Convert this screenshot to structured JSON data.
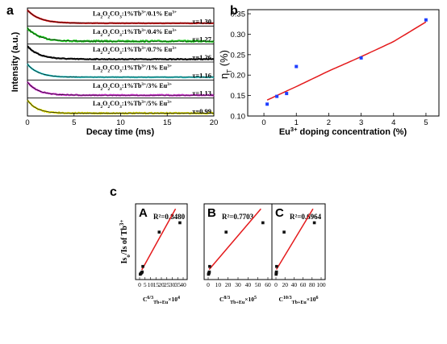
{
  "panel_letters": {
    "a": "a",
    "b": "b",
    "c": "c"
  },
  "chart_data": [
    {
      "panel": "a",
      "type": "line",
      "xlabel": "Decay time (ms)",
      "ylabel": "Intensity (a.u.)",
      "xlim": [
        0,
        20
      ],
      "xticks": [
        "0",
        "5",
        "10",
        "15",
        "20"
      ],
      "series": [
        {
          "name": "La2O2CO3:1%Tb3+/0.1% Eu3+",
          "label_main": "La",
          "tau": "τ=1.30",
          "tau_value": 1.3,
          "color": "#e41a1c",
          "noise": 0.05
        },
        {
          "name": "La2O2CO3:1%Tb3+/0.4% Eu3+",
          "tau": "τ=1.27",
          "tau_value": 1.27,
          "color": "#22d322",
          "noise": 0.22
        },
        {
          "name": "La2O2CO3:1%Tb3+/0.7% Eu3+",
          "tau": "τ=1.26",
          "tau_value": 1.26,
          "color": "#111111",
          "noise": 0.12
        },
        {
          "name": "La2O2CO3:1%Tb3+/1% Eu3+",
          "tau": "τ=1.16",
          "tau_value": 1.16,
          "color": "#33d6d6",
          "noise": 0.08
        },
        {
          "name": "La2O2CO3:1%Tb3+/3% Eu3+",
          "tau": "τ=1.13",
          "tau_value": 1.13,
          "color": "#d633d6",
          "noise": 0.15
        },
        {
          "name": "La2O2CO3:1%Tb3+/5% Eu3+",
          "tau": "τ=0.99",
          "tau_value": 0.99,
          "color": "#dede10",
          "noise": 0.18
        }
      ]
    },
    {
      "panel": "b",
      "type": "scatter",
      "xlabel": "Eu3+ doping concentration (%)",
      "ylabel": "ηT (%)",
      "xlim": [
        -0.5,
        5.4
      ],
      "ylim": [
        0.1,
        0.36
      ],
      "xticks": [
        0,
        1,
        2,
        3,
        4,
        5
      ],
      "yticks": [
        "0.10",
        "0.15",
        "0.20",
        "0.25",
        "0.30",
        "0.35"
      ],
      "points": [
        {
          "x": 0.1,
          "y": 0.129
        },
        {
          "x": 0.4,
          "y": 0.148
        },
        {
          "x": 0.7,
          "y": 0.155
        },
        {
          "x": 1.0,
          "y": 0.221
        },
        {
          "x": 3.0,
          "y": 0.242
        },
        {
          "x": 5.0,
          "y": 0.335
        }
      ],
      "fit": {
        "x": [
          0.1,
          1,
          2,
          3,
          4,
          5
        ],
        "y": [
          0.139,
          0.172,
          0.21,
          0.245,
          0.282,
          0.33
        ]
      },
      "marker_color": "#1f3fff",
      "fit_color": "#e41a1c"
    },
    {
      "panel": "c",
      "type": "scatter",
      "ylabel": "Iso/Is of Tb3+",
      "subplots": [
        {
          "letter": "A",
          "r2": "R²=0.8480",
          "xlabel_sup": "6/3",
          "xlabel_exp": "4",
          "xlim": [
            0,
            40
          ],
          "xticks": [
            "0",
            "5",
            "10",
            "15",
            "20",
            "25",
            "30",
            "35",
            "40"
          ],
          "points": [
            {
              "x": 0.6,
              "y": 2.1
            },
            {
              "x": 1.2,
              "y": 2.4
            },
            {
              "x": 1.8,
              "y": 2.7
            },
            {
              "x": 2.4,
              "y": 3.0
            },
            {
              "x": 3.0,
              "y": 5.2
            },
            {
              "x": 18.0,
              "y": 18.8
            },
            {
              "x": 37.0,
              "y": 22.5
            }
          ],
          "fit": {
            "x": [
              2.0,
              33.0
            ],
            "y": [
              3.8,
              28.0
            ]
          }
        },
        {
          "letter": "B",
          "r2": "R²=0.7703",
          "xlabel_sup": "8/3",
          "xlabel_exp": "5",
          "xlim": [
            0,
            60
          ],
          "xticks": [
            "0",
            "10",
            "20",
            "30",
            "40",
            "50",
            "60"
          ],
          "points": [
            {
              "x": 0.3,
              "y": 2.1
            },
            {
              "x": 0.6,
              "y": 2.4
            },
            {
              "x": 0.9,
              "y": 2.7
            },
            {
              "x": 1.2,
              "y": 3.0
            },
            {
              "x": 1.5,
              "y": 5.2
            },
            {
              "x": 18.0,
              "y": 18.8
            },
            {
              "x": 55.0,
              "y": 22.5
            }
          ],
          "fit": {
            "x": [
              1.0,
              53.0
            ],
            "y": [
              4.0,
              28.0
            ]
          }
        },
        {
          "letter": "C",
          "r2": "R²=0.6964",
          "xlabel_sup": "10/3",
          "xlabel_exp": "6",
          "xlim": [
            0,
            100
          ],
          "xticks": [
            "0",
            "20",
            "40",
            "60",
            "80",
            "100"
          ],
          "points": [
            {
              "x": 0.3,
              "y": 2.1
            },
            {
              "x": 0.6,
              "y": 2.4
            },
            {
              "x": 0.9,
              "y": 2.7
            },
            {
              "x": 1.2,
              "y": 3.0
            },
            {
              "x": 1.5,
              "y": 5.2
            },
            {
              "x": 18.0,
              "y": 18.8
            },
            {
              "x": 85.0,
              "y": 22.5
            }
          ],
          "fit": {
            "x": [
              1.0,
              82.0
            ],
            "y": [
              4.0,
              28.0
            ]
          }
        }
      ],
      "ylim": [
        0,
        30
      ],
      "xlabel_main": "C",
      "xlabel_sub": "Tb+Eu",
      "xlabel_times": "×10",
      "marker_color": "#111111",
      "fit_color": "#e41a1c"
    }
  ]
}
